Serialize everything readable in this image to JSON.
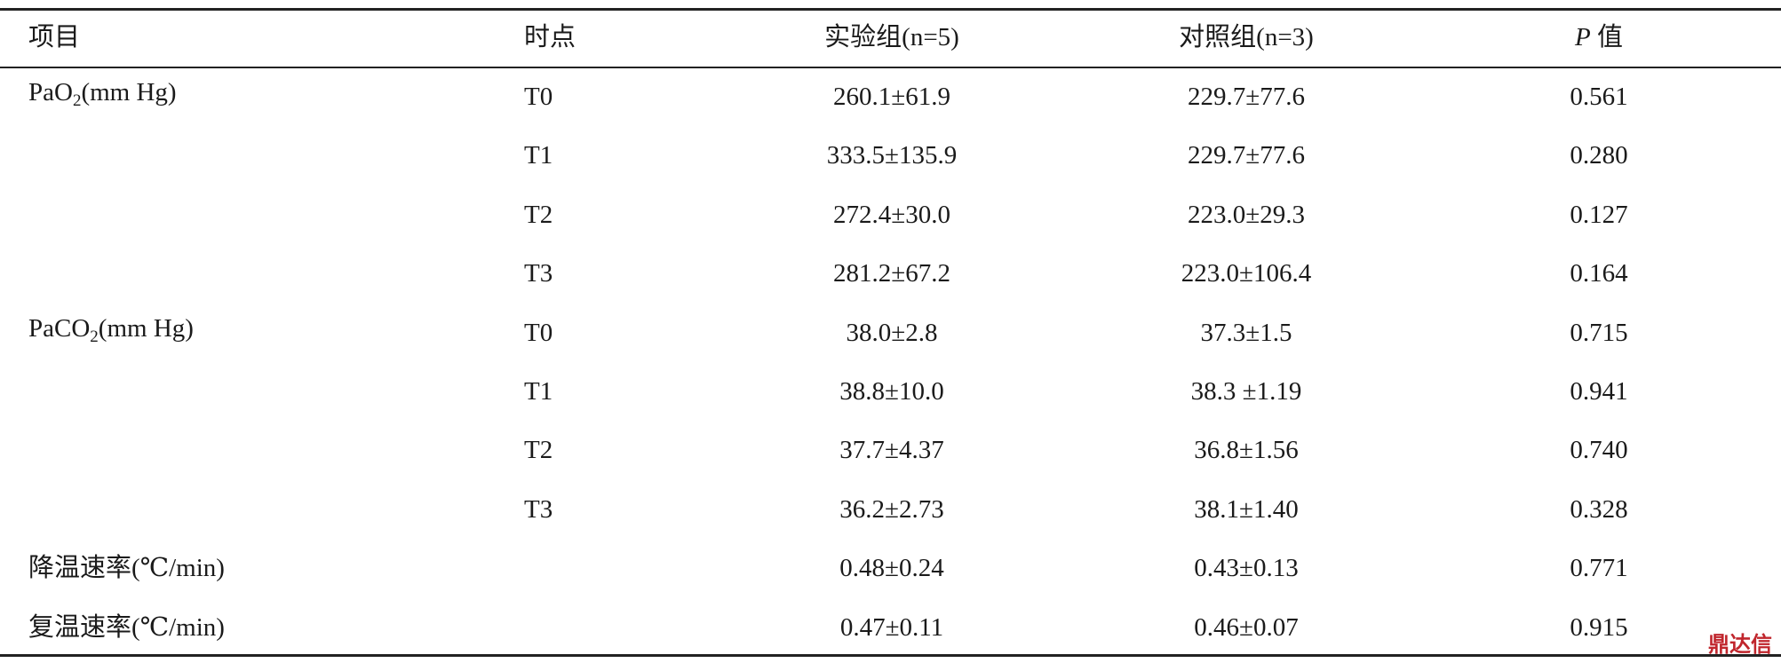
{
  "table": {
    "header": {
      "item": "项目",
      "time": "时点",
      "exp": "实验组(n=5)",
      "ctrl": "对照组(n=3)",
      "p": {
        "italic": "P",
        "text": "值"
      }
    },
    "groups": [
      {
        "item": {
          "text": "PaO",
          "sub": "2",
          "rest": "(mm Hg)"
        },
        "rows": [
          {
            "time": "T0",
            "exp": "260.1±61.9",
            "ctrl": "229.7±77.6",
            "p": "0.561"
          },
          {
            "time": "T1",
            "exp": "333.5±135.9",
            "ctrl": "229.7±77.6",
            "p": "0.280"
          },
          {
            "time": "T2",
            "exp": "272.4±30.0",
            "ctrl": "223.0±29.3",
            "p": "0.127"
          },
          {
            "time": "T3",
            "exp": "281.2±67.2",
            "ctrl": "223.0±106.4",
            "p": "0.164"
          }
        ]
      },
      {
        "item": {
          "text": "PaCO",
          "sub": "2",
          "rest": "(mm Hg)"
        },
        "rows": [
          {
            "time": "T0",
            "exp": "38.0±2.8",
            "ctrl": "37.3±1.5",
            "p": "0.715"
          },
          {
            "time": "T1",
            "exp": "38.8±10.0",
            "ctrl": "38.3 ±1.19",
            "p": "0.941"
          },
          {
            "time": "T2",
            "exp": "37.7±4.37",
            "ctrl": "36.8±1.56",
            "p": "0.740"
          },
          {
            "time": "T3",
            "exp": "36.2±2.73",
            "ctrl": "38.1±1.40",
            "p": "0.328"
          }
        ]
      },
      {
        "item": {
          "text": "降温速率(℃/min)"
        },
        "rows": [
          {
            "exp": "0.48±0.24",
            "ctrl": "0.43±0.13",
            "p": "0.771"
          }
        ]
      },
      {
        "item": {
          "text": "复温速率(℃/min)"
        },
        "rows": [
          {
            "exp": "0.47±0.11",
            "ctrl": "0.46±0.07",
            "p": "0.915"
          }
        ]
      }
    ],
    "watermark": "鼎达信"
  }
}
